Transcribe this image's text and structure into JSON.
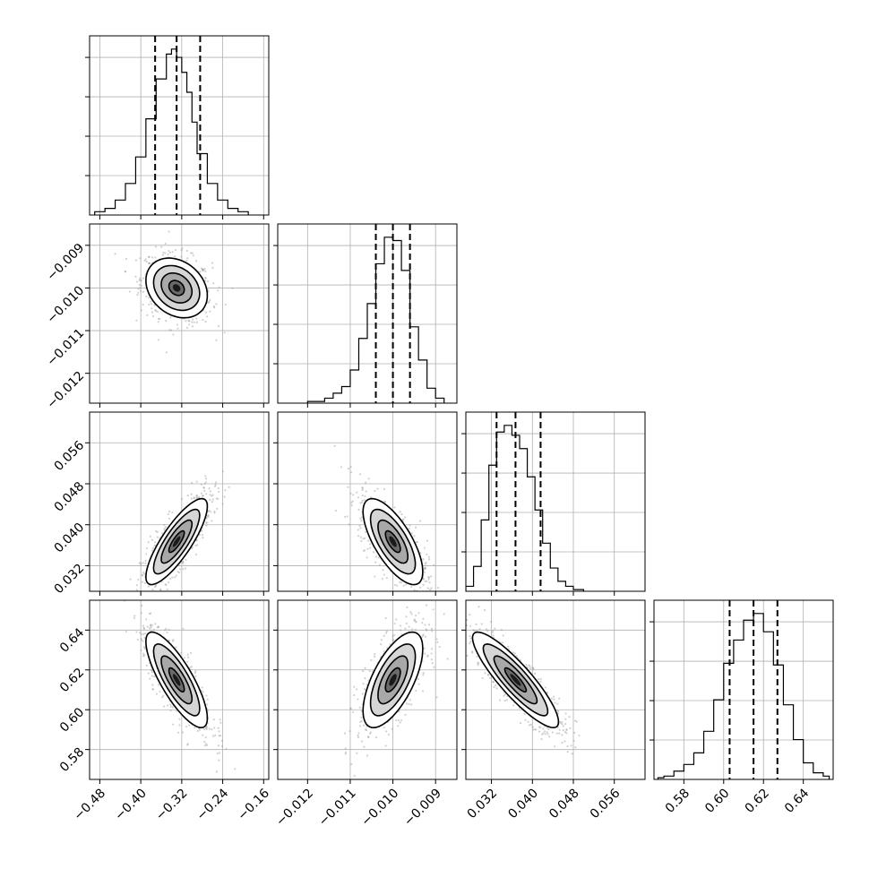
{
  "chart_data": {
    "type": "corner",
    "grid": true,
    "parameters": [
      {
        "id": "p1",
        "range": [
          -0.5,
          -0.15
        ],
        "ticks": [
          -0.48,
          -0.4,
          -0.32,
          -0.24,
          -0.16
        ],
        "tick_labels": [
          "−0.48",
          "−0.40",
          "−0.32",
          "−0.24",
          "−0.16"
        ],
        "quantiles": [
          -0.372,
          -0.33,
          -0.284
        ],
        "hist": {
          "edges": [
            -0.49,
            -0.47,
            -0.45,
            -0.43,
            -0.41,
            -0.39,
            -0.37,
            -0.35,
            -0.34,
            -0.33,
            -0.32,
            -0.31,
            -0.3,
            -0.29,
            -0.27,
            -0.25,
            -0.23,
            -0.21,
            -0.19
          ],
          "counts": [
            0.02,
            0.04,
            0.09,
            0.19,
            0.35,
            0.58,
            0.82,
            0.97,
            1.0,
            0.95,
            0.86,
            0.74,
            0.56,
            0.37,
            0.19,
            0.09,
            0.04,
            0.02
          ]
        }
      },
      {
        "id": "p2",
        "range": [
          -0.0127,
          -0.0085
        ],
        "ticks": [
          -0.012,
          -0.011,
          -0.01,
          -0.009
        ],
        "tick_labels": [
          "−0.012",
          "−0.011",
          "−0.010",
          "−0.009"
        ],
        "quantiles": [
          -0.0104,
          -0.01,
          -0.0096
        ],
        "hist": {
          "edges": [
            -0.012,
            -0.0116,
            -0.0114,
            -0.0112,
            -0.011,
            -0.0108,
            -0.0106,
            -0.0104,
            -0.0102,
            -0.01,
            -0.0098,
            -0.0096,
            -0.0094,
            -0.0092,
            -0.009,
            -0.0088
          ],
          "counts": [
            0.01,
            0.03,
            0.06,
            0.1,
            0.2,
            0.39,
            0.6,
            0.84,
            1.0,
            0.98,
            0.8,
            0.46,
            0.26,
            0.09,
            0.03
          ]
        }
      },
      {
        "id": "p3",
        "range": [
          0.027,
          0.062
        ],
        "ticks": [
          0.032,
          0.04,
          0.048,
          0.056
        ],
        "tick_labels": [
          "0.032",
          "0.040",
          "0.048",
          "0.056"
        ],
        "quantiles": [
          0.033,
          0.0367,
          0.0416
        ],
        "hist": {
          "edges": [
            0.027,
            0.0285,
            0.03,
            0.0315,
            0.033,
            0.0345,
            0.036,
            0.0375,
            0.039,
            0.0405,
            0.042,
            0.0435,
            0.045,
            0.0465,
            0.048,
            0.05
          ],
          "counts": [
            0.03,
            0.15,
            0.43,
            0.76,
            0.96,
            1.0,
            0.94,
            0.86,
            0.69,
            0.49,
            0.29,
            0.14,
            0.06,
            0.03,
            0.01
          ]
        }
      },
      {
        "id": "p4",
        "range": [
          0.565,
          0.655
        ],
        "ticks": [
          0.58,
          0.6,
          0.62,
          0.64
        ],
        "tick_labels": [
          "0.58",
          "0.60",
          "0.62",
          "0.64"
        ],
        "quantiles": [
          0.603,
          0.615,
          0.627
        ],
        "hist": {
          "edges": [
            0.567,
            0.57,
            0.575,
            0.58,
            0.585,
            0.59,
            0.595,
            0.6,
            0.605,
            0.61,
            0.615,
            0.62,
            0.625,
            0.63,
            0.635,
            0.64,
            0.645,
            0.65,
            0.653
          ],
          "counts": [
            0.01,
            0.02,
            0.05,
            0.09,
            0.16,
            0.29,
            0.48,
            0.7,
            0.84,
            0.96,
            1.0,
            0.89,
            0.69,
            0.45,
            0.24,
            0.1,
            0.04,
            0.02
          ]
        }
      }
    ],
    "pairs": [
      {
        "x": "p1",
        "y": "p2",
        "mean": [
          -0.33,
          -0.01
        ],
        "sd": [
          0.03,
          0.00035
        ],
        "rho": -0.25,
        "n": 700
      },
      {
        "x": "p1",
        "y": "p3",
        "mean": [
          -0.33,
          0.0367
        ],
        "sd": [
          0.03,
          0.0042
        ],
        "rho": 0.82,
        "n": 700
      },
      {
        "x": "p2",
        "y": "p3",
        "mean": [
          -0.01,
          0.0367
        ],
        "sd": [
          0.00035,
          0.0042
        ],
        "rho": -0.7,
        "n": 700
      },
      {
        "x": "p1",
        "y": "p4",
        "mean": [
          -0.33,
          0.615
        ],
        "sd": [
          0.03,
          0.012
        ],
        "rho": -0.8,
        "n": 700
      },
      {
        "x": "p2",
        "y": "p4",
        "mean": [
          -0.01,
          0.615
        ],
        "sd": [
          0.00035,
          0.012
        ],
        "rho": 0.65,
        "n": 700
      },
      {
        "x": "p3",
        "y": "p4",
        "mean": [
          0.0367,
          0.615
        ],
        "sd": [
          0.0042,
          0.012
        ],
        "rho": -0.88,
        "n": 700
      }
    ],
    "contour_levels_sigma": [
      0.5,
      1.0,
      1.5,
      2.0
    ]
  }
}
